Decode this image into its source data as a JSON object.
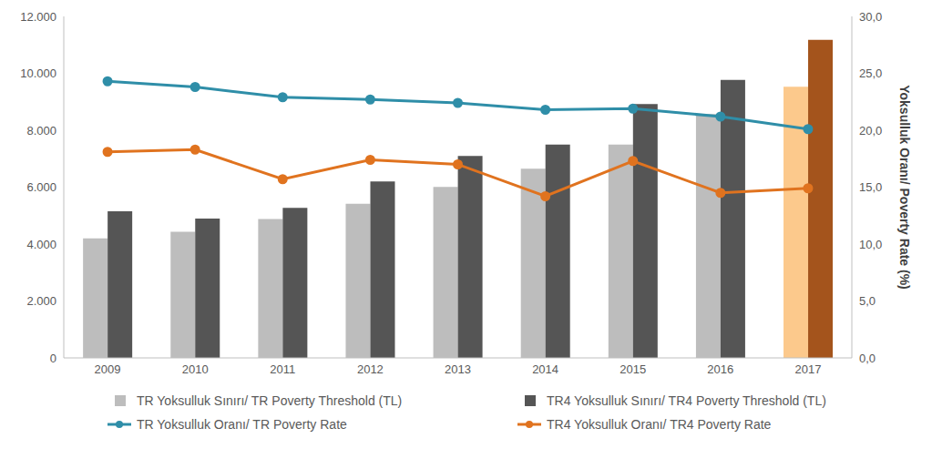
{
  "chart_data": {
    "type": "bar",
    "categories": [
      "2009",
      "2010",
      "2011",
      "2012",
      "2013",
      "2014",
      "2015",
      "2016",
      "2017"
    ],
    "series": [
      {
        "name": "TR Yoksulluk Sınırı/ TR Poverty Threshold (TL)",
        "type": "bar",
        "color": "#bdbdbd",
        "colors": [
          "#bdbdbd",
          "#bdbdbd",
          "#bdbdbd",
          "#bdbdbd",
          "#bdbdbd",
          "#bdbdbd",
          "#bdbdbd",
          "#bdbdbd",
          "#fcc98c"
        ],
        "values": [
          4200,
          4430,
          4880,
          5420,
          6010,
          6650,
          7500,
          8570,
          9530
        ]
      },
      {
        "name": "TR4 Yoksulluk Sınırı/ TR4 Poverty Threshold (TL)",
        "type": "bar",
        "color": "#555555",
        "colors": [
          "#555555",
          "#555555",
          "#555555",
          "#555555",
          "#555555",
          "#555555",
          "#555555",
          "#555555",
          "#a4541c"
        ],
        "values": [
          5150,
          4900,
          5270,
          6200,
          7100,
          7500,
          8920,
          9770,
          11180
        ]
      },
      {
        "name": "TR Yoksulluk Oranı/ TR Poverty Rate",
        "type": "line",
        "axis": "y2",
        "color": "#2f8ea8",
        "marker": "circle",
        "values": [
          24.3,
          23.8,
          22.9,
          22.7,
          22.4,
          21.8,
          21.9,
          21.2,
          20.1
        ]
      },
      {
        "name": "TR4 Yoksulluk Oranı/ TR4 Poverty Rate",
        "type": "line",
        "axis": "y2",
        "color": "#e0731f",
        "marker": "circle",
        "values": [
          18.1,
          18.3,
          15.7,
          17.4,
          17.0,
          14.2,
          17.3,
          14.5,
          14.9
        ]
      }
    ],
    "ylim": [
      0,
      12000
    ],
    "yticks": [
      0,
      {
        "value": 2000,
        "label": "2.000"
      },
      {
        "value": 4000,
        "label": "4.000"
      },
      {
        "value": 6000,
        "label": "6.000"
      },
      {
        "value": 8000,
        "label": "8.000"
      },
      {
        "value": 10000,
        "label": "10.000"
      },
      {
        "value": 12000,
        "label": "12.000"
      }
    ],
    "y2lim": [
      0,
      30
    ],
    "y2ticks": [
      {
        "value": 0,
        "label": "0,0"
      },
      {
        "value": 5,
        "label": "5,0"
      },
      {
        "value": 10,
        "label": "10,0"
      },
      {
        "value": 15,
        "label": "15,0"
      },
      {
        "value": 20,
        "label": "20,0"
      },
      {
        "value": 25,
        "label": "25,0"
      },
      {
        "value": 30,
        "label": "30,0"
      }
    ],
    "y2label": "Yoksulluk Oranı/ Poverty Rate (%)",
    "grid": false,
    "legend": "bottom"
  }
}
